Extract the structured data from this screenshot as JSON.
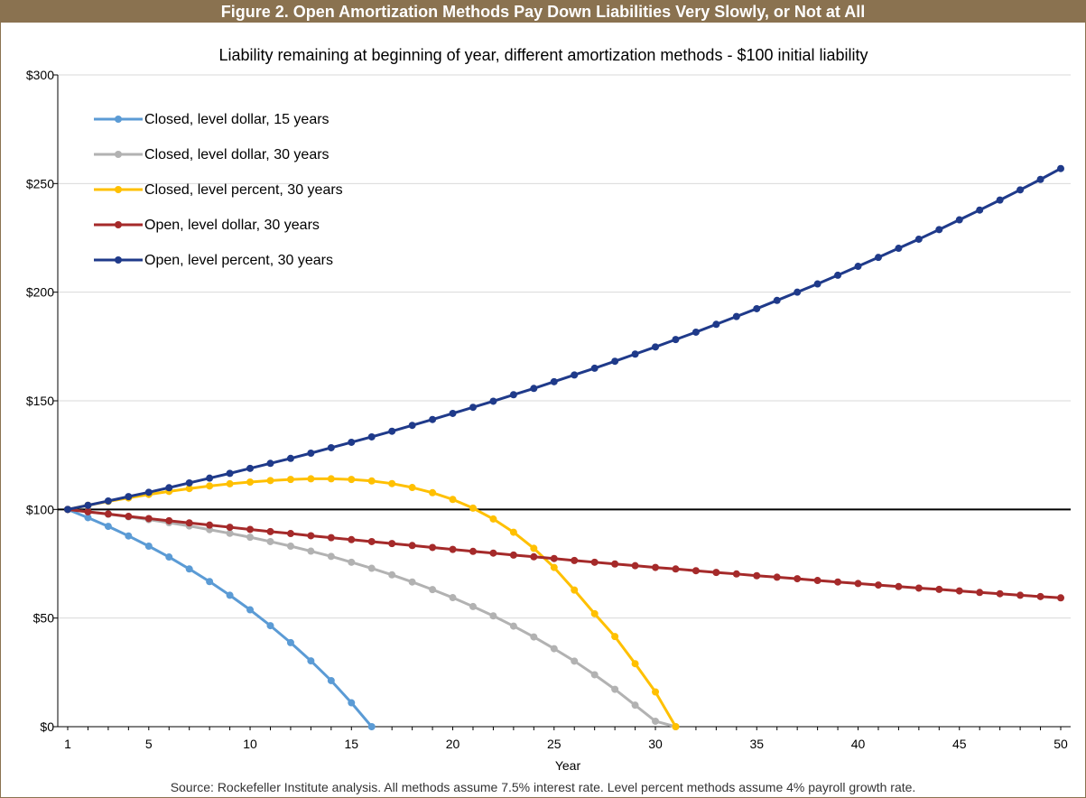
{
  "figure_title": "Figure 2. Open Amortization Methods Pay Down Liabilities Very Slowly, or Not at All",
  "source": "Source: Rockefeller Institute analysis. All methods assume 7.5% interest rate. Level percent methods assume 4% payroll growth rate.",
  "colors": {
    "header_bg": "#8a7250",
    "axis": "#000000",
    "grid": "#d9d9d9"
  },
  "chart_data": {
    "type": "line",
    "title": "Liability remaining at beginning of year, different amortization methods - $100 initial liability",
    "xlabel": "Year",
    "ylabel": "",
    "xlim": [
      1,
      50
    ],
    "ylim": [
      0,
      300
    ],
    "x_ticks": [
      1,
      5,
      10,
      15,
      20,
      25,
      30,
      35,
      40,
      45,
      50
    ],
    "y_ticks": [
      0,
      50,
      100,
      150,
      200,
      250,
      300
    ],
    "y_tick_labels": [
      "$0",
      "$50",
      "$100",
      "$150",
      "$200",
      "$250",
      "$300"
    ],
    "grid": "horizontal",
    "legend_position": "top-left",
    "reference_line": {
      "y": 100,
      "color": "#000000"
    },
    "series": [
      {
        "name": "Closed, level dollar, 15 years",
        "color": "#5b9bd5",
        "x": [
          1,
          2,
          3,
          4,
          5,
          6,
          7,
          8,
          9,
          10,
          11,
          12,
          13,
          14,
          15,
          16
        ],
        "values": [
          100,
          96.2,
          92.2,
          87.8,
          83.1,
          78.1,
          72.6,
          66.8,
          60.5,
          53.8,
          46.5,
          38.7,
          30.3,
          21.2,
          11.0,
          0
        ]
      },
      {
        "name": "Closed, level dollar, 30 years",
        "color": "#b2b2b2",
        "x": [
          1,
          2,
          3,
          4,
          5,
          6,
          7,
          8,
          9,
          10,
          11,
          12,
          13,
          14,
          15,
          16,
          17,
          18,
          19,
          20,
          21,
          22,
          23,
          24,
          25,
          26,
          27,
          28,
          29,
          30,
          31
        ],
        "values": [
          100,
          98.9,
          97.8,
          96.6,
          95.3,
          93.9,
          92.4,
          90.7,
          89.0,
          87.2,
          85.2,
          83.1,
          80.8,
          78.4,
          75.7,
          72.9,
          69.9,
          66.6,
          63.1,
          59.4,
          55.3,
          51.0,
          46.3,
          41.3,
          35.9,
          30.2,
          23.9,
          17.2,
          9.9,
          2.5,
          0
        ]
      },
      {
        "name": "Closed, level percent, 30 years",
        "color": "#ffc000",
        "x": [
          1,
          2,
          3,
          4,
          5,
          6,
          7,
          8,
          9,
          10,
          11,
          12,
          13,
          14,
          15,
          16,
          17,
          18,
          19,
          20,
          21,
          22,
          23,
          24,
          25,
          26,
          27,
          28,
          29,
          30,
          31
        ],
        "values": [
          100,
          101.9,
          103.7,
          105.3,
          106.9,
          108.3,
          109.6,
          110.8,
          111.8,
          112.6,
          113.3,
          113.8,
          114.1,
          114.1,
          113.8,
          113.1,
          111.9,
          110.1,
          107.7,
          104.6,
          100.6,
          95.6,
          89.5,
          82.1,
          73.3,
          62.9,
          52.0,
          41.5,
          29.0,
          16.0,
          0
        ]
      },
      {
        "name": "Open, level dollar, 30 years",
        "color": "#a52a2a",
        "x": [
          1,
          2,
          3,
          4,
          5,
          6,
          7,
          8,
          9,
          10,
          11,
          12,
          13,
          14,
          15,
          16,
          17,
          18,
          19,
          20,
          21,
          22,
          23,
          24,
          25,
          26,
          27,
          28,
          29,
          30,
          31,
          32,
          33,
          34,
          35,
          36,
          37,
          38,
          39,
          40,
          41,
          42,
          43,
          44,
          45,
          46,
          47,
          48,
          49,
          50
        ],
        "values": [
          100,
          98.9,
          97.9,
          96.8,
          95.8,
          94.8,
          93.8,
          92.8,
          91.8,
          90.8,
          89.8,
          88.9,
          87.9,
          87.0,
          86.1,
          85.2,
          84.3,
          83.4,
          82.5,
          81.6,
          80.7,
          79.9,
          79.0,
          78.2,
          77.4,
          76.5,
          75.7,
          74.9,
          74.1,
          73.3,
          72.6,
          71.8,
          71.0,
          70.3,
          69.5,
          68.8,
          68.1,
          67.3,
          66.6,
          65.9,
          65.2,
          64.5,
          63.8,
          63.2,
          62.5,
          61.8,
          61.2,
          60.5,
          59.9,
          59.3
        ]
      },
      {
        "name": "Open, level percent, 30 years",
        "color": "#1f3a8a",
        "x": [
          1,
          2,
          3,
          4,
          5,
          6,
          7,
          8,
          9,
          10,
          11,
          12,
          13,
          14,
          15,
          16,
          17,
          18,
          19,
          20,
          21,
          22,
          23,
          24,
          25,
          26,
          27,
          28,
          29,
          30,
          31,
          32,
          33,
          34,
          35,
          36,
          37,
          38,
          39,
          40,
          41,
          42,
          43,
          44,
          45,
          46,
          47,
          48,
          49,
          50
        ],
        "values": [
          100,
          101.9,
          103.9,
          105.9,
          107.9,
          110.0,
          112.2,
          114.4,
          116.6,
          118.9,
          121.2,
          123.5,
          125.9,
          128.4,
          130.9,
          133.4,
          136.0,
          138.7,
          141.4,
          144.2,
          147.0,
          149.8,
          152.8,
          155.7,
          158.8,
          161.9,
          165.0,
          168.2,
          171.5,
          174.8,
          178.2,
          181.6,
          185.2,
          188.8,
          192.4,
          196.2,
          200.0,
          203.8,
          207.8,
          211.9,
          216.0,
          220.2,
          224.4,
          228.8,
          233.3,
          237.8,
          242.4,
          247.1,
          251.9,
          256.9
        ]
      }
    ]
  }
}
